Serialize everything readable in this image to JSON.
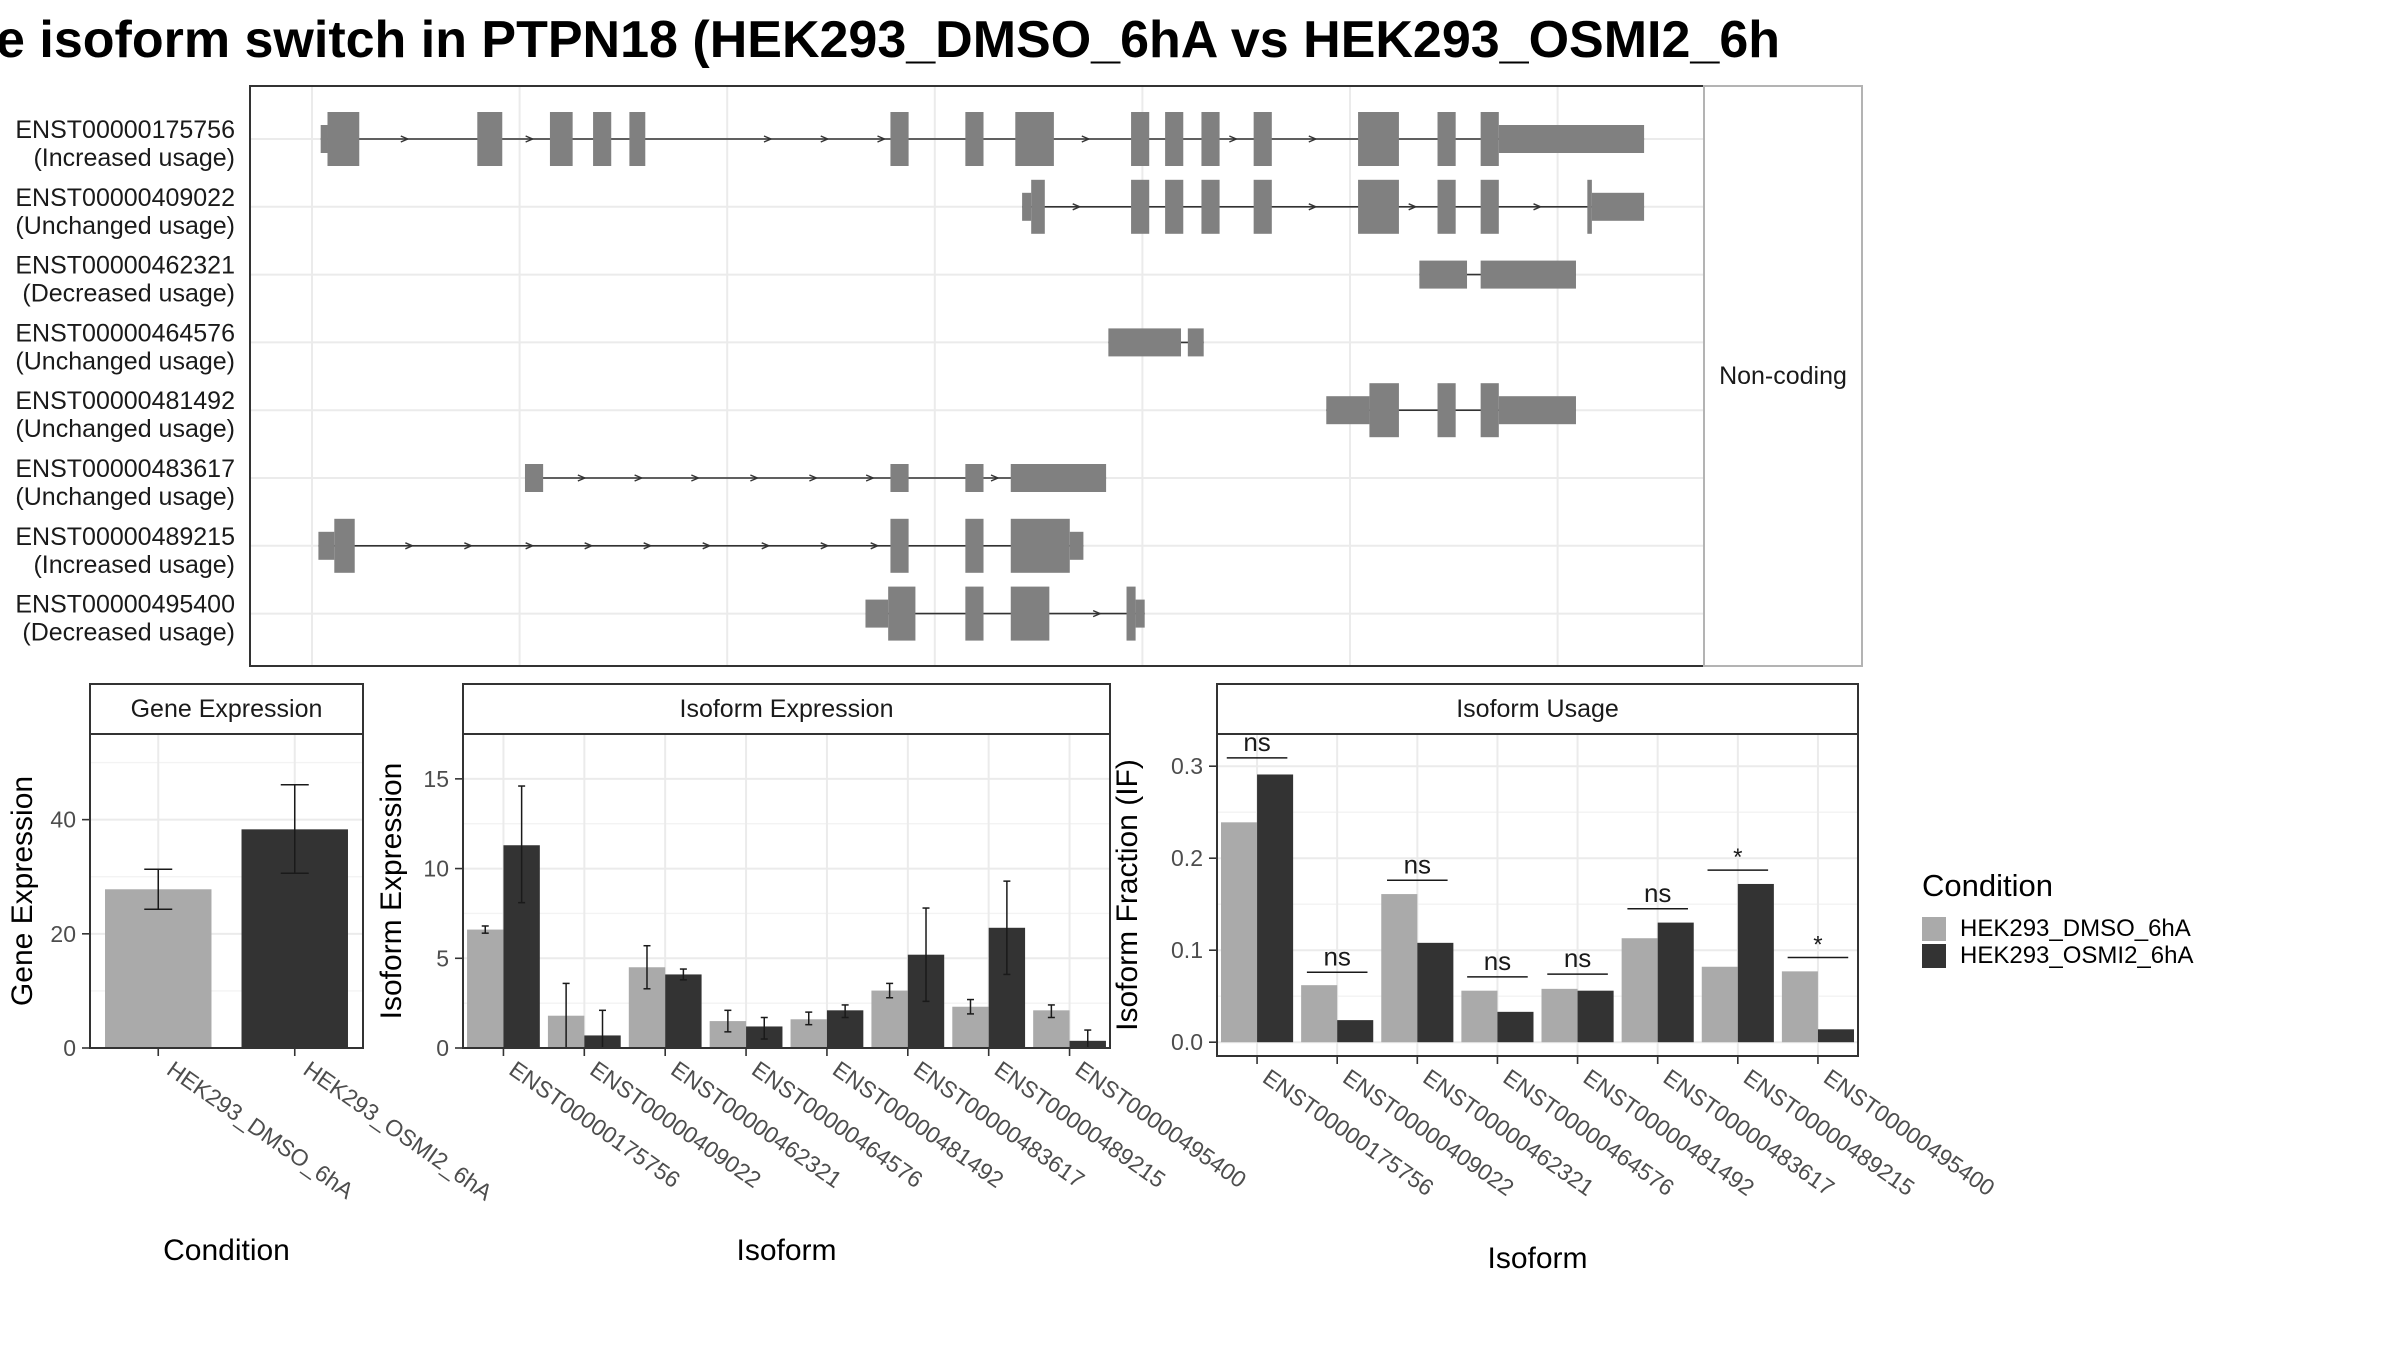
{
  "title": "e isoform switch in PTPN18 (HEK293_DMSO_6hA vs HEK293_OSMI2_6h",
  "colors": {
    "dmso": "#aaaaaa",
    "osmi": "#333333",
    "exon": "#808080",
    "grid": "#ebebeb",
    "panel_border": "#333333"
  },
  "chart_data": [
    {
      "type": "gene-structure",
      "facet_label": "Non-coding",
      "transcripts": [
        {
          "id": "ENST00000175756",
          "usage": "(Increased usage)",
          "exons": [
            [
              2.5,
              5.5,
              0
            ],
            [
              5.5,
              19.5,
              1
            ],
            [
              71.5,
              82.5,
              1
            ],
            [
              103.5,
              113.5,
              1
            ],
            [
              122.5,
              130.5,
              1
            ],
            [
              138.5,
              145.5,
              1
            ],
            [
              253.5,
              261.5,
              1
            ],
            [
              286.5,
              294.5,
              1
            ],
            [
              308.5,
              325.5,
              1
            ],
            [
              359.5,
              367.5,
              1
            ],
            [
              374.5,
              382.5,
              1
            ],
            [
              390.5,
              398.5,
              1
            ],
            [
              413.5,
              421.5,
              1
            ],
            [
              459.5,
              477.5,
              1
            ],
            [
              494.5,
              502.5,
              1
            ],
            [
              513.5,
              521.5,
              1
            ],
            [
              521.5,
              585.5,
              0
            ]
          ],
          "arrows": [
            40,
            95,
            200,
            225,
            250,
            340,
            405,
            440
          ]
        },
        {
          "id": "ENST00000409022",
          "usage": "(Unchanged usage)",
          "exons": [
            [
              311.5,
              315.5,
              0
            ],
            [
              315.5,
              321.5,
              1
            ],
            [
              359.5,
              367.5,
              1
            ],
            [
              374.5,
              382.5,
              1
            ],
            [
              390.5,
              398.5,
              1
            ],
            [
              413.5,
              421.5,
              1
            ],
            [
              459.5,
              477.5,
              1
            ],
            [
              494.5,
              502.5,
              1
            ],
            [
              513.5,
              521.5,
              1
            ],
            [
              560.5,
              562.5,
              1
            ],
            [
              562.5,
              585.5,
              0
            ]
          ],
          "arrows": [
            336,
            440,
            484,
            539
          ]
        },
        {
          "id": "ENST00000462321",
          "usage": "(Decreased usage)",
          "exons": [
            [
              486.5,
              507.5,
              0
            ],
            [
              513.5,
              555.5,
              0
            ]
          ],
          "arrows": []
        },
        {
          "id": "ENST00000464576",
          "usage": "(Unchanged usage)",
          "exons": [
            [
              349.5,
              381.5,
              0
            ],
            [
              384.5,
              391.5,
              0
            ]
          ],
          "arrows": []
        },
        {
          "id": "ENST00000481492",
          "usage": "(Unchanged usage)",
          "exons": [
            [
              445.5,
              464.5,
              0
            ],
            [
              464.5,
              477.5,
              1
            ],
            [
              494.5,
              502.5,
              1
            ],
            [
              513.5,
              521.5,
              1
            ],
            [
              521.5,
              555.5,
              0
            ]
          ],
          "arrows": []
        },
        {
          "id": "ENST00000483617",
          "usage": "(Unchanged usage)",
          "exons": [
            [
              92.5,
              100.5,
              0
            ],
            [
              253.5,
              261.5,
              0
            ],
            [
              286.5,
              294.5,
              0
            ],
            [
              306.5,
              348.5,
              0
            ]
          ],
          "arrows": [
            118,
            143,
            168,
            194,
            220,
            245,
            300
          ]
        },
        {
          "id": "ENST00000489215",
          "usage": "(Increased usage)",
          "exons": [
            [
              1.5,
              8.5,
              0
            ],
            [
              8.5,
              17.5,
              1
            ],
            [
              253.5,
              261.5,
              1
            ],
            [
              286.5,
              294.5,
              1
            ],
            [
              306.5,
              332.5,
              1
            ],
            [
              332.5,
              338.5,
              0
            ]
          ],
          "arrows": [
            42,
            68,
            95,
            121,
            147,
            173,
            199,
            225,
            247
          ]
        },
        {
          "id": "ENST00000495400",
          "usage": "(Decreased usage)",
          "exons": [
            [
              242.5,
              252.5,
              0
            ],
            [
              252.5,
              264.5,
              1
            ],
            [
              286.5,
              294.5,
              1
            ],
            [
              306.5,
              323.5,
              1
            ],
            [
              357.5,
              361.5,
              1
            ],
            [
              361.5,
              365.5,
              0
            ]
          ],
          "arrows": [
            345
          ]
        }
      ]
    },
    {
      "type": "bar",
      "title": "Gene Expression",
      "xlabel": "Condition",
      "ylabel": "Gene Expression",
      "ylim": [
        0,
        55
      ],
      "yticks": [
        0,
        20,
        40
      ],
      "categories": [
        "HEK293_DMSO_6hA",
        "HEK293_OSMI2_6hA"
      ],
      "values": [
        27.8,
        38.3
      ],
      "error_low": [
        24.3,
        30.6
      ],
      "error_high": [
        31.3,
        46.1
      ]
    },
    {
      "type": "bar",
      "title": "Isoform Expression",
      "xlabel": "Isoform",
      "ylabel": "Isoform Expression",
      "ylim": [
        0,
        17.5
      ],
      "yticks": [
        0,
        5,
        10,
        15
      ],
      "categories": [
        "ENST00000175756",
        "ENST00000409022",
        "ENST00000462321",
        "ENST00000464576",
        "ENST00000481492",
        "ENST00000483617",
        "ENST00000489215",
        "ENST00000495400"
      ],
      "series": [
        {
          "name": "HEK293_DMSO_6hA",
          "values": [
            6.6,
            1.8,
            4.5,
            1.5,
            1.6,
            3.2,
            2.3,
            2.1
          ],
          "error_low": [
            6.4,
            0.0,
            3.3,
            0.9,
            1.3,
            2.8,
            1.9,
            1.7
          ],
          "error_high": [
            6.8,
            3.6,
            5.7,
            2.1,
            2.0,
            3.6,
            2.7,
            2.4
          ]
        },
        {
          "name": "HEK293_OSMI2_6hA",
          "values": [
            11.3,
            0.7,
            4.1,
            1.2,
            2.1,
            5.2,
            6.7,
            0.4
          ],
          "error_low": [
            8.1,
            0.0,
            3.8,
            0.5,
            1.7,
            2.6,
            4.1,
            0.0
          ],
          "error_high": [
            14.6,
            2.1,
            4.4,
            1.7,
            2.4,
            7.8,
            9.3,
            1.0
          ]
        }
      ]
    },
    {
      "type": "bar",
      "title": "Isoform Usage",
      "xlabel": "Isoform",
      "ylabel": "Isoform Fraction (IF)",
      "ylim": [
        -0.015,
        0.335
      ],
      "yticks": [
        0.0,
        0.1,
        0.2,
        0.3
      ],
      "ytick_labels": [
        "0.0",
        "0.1",
        "0.2",
        "0.3"
      ],
      "categories": [
        "ENST00000175756",
        "ENST00000409022",
        "ENST00000462321",
        "ENST00000464576",
        "ENST00000481492",
        "ENST00000483617",
        "ENST00000489215",
        "ENST00000495400"
      ],
      "series": [
        {
          "name": "HEK293_DMSO_6hA",
          "values": [
            0.239,
            0.062,
            0.161,
            0.056,
            0.058,
            0.113,
            0.082,
            0.077
          ]
        },
        {
          "name": "HEK293_OSMI2_6hA",
          "values": [
            0.291,
            0.024,
            0.108,
            0.033,
            0.056,
            0.13,
            0.172,
            0.014
          ]
        }
      ],
      "significance": [
        "ns",
        "ns",
        "ns",
        "ns",
        "ns",
        "ns",
        "*",
        "*"
      ],
      "sig_bar_y": [
        0.309,
        0.076,
        0.176,
        0.071,
        0.074,
        0.145,
        0.187,
        0.092
      ]
    }
  ],
  "legend": {
    "title": "Condition",
    "entries": [
      "HEK293_DMSO_6hA",
      "HEK293_OSMI2_6hA"
    ]
  }
}
